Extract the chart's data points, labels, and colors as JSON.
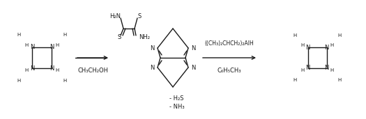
{
  "figsize": [
    5.25,
    1.71
  ],
  "dpi": 100,
  "bg_color": "#ffffff",
  "line_color": "#1a1a1a",
  "lw": 1.0,
  "font_size": 6.0,
  "xlim": [
    0,
    525
  ],
  "ylim": [
    0,
    171
  ]
}
